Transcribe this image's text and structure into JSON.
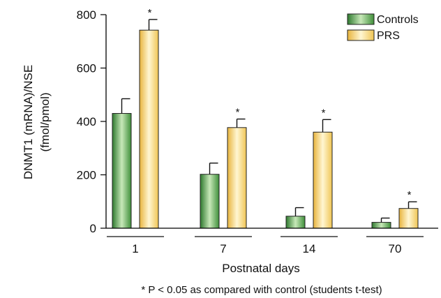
{
  "chart_data": {
    "type": "bar",
    "categories": [
      "1",
      "7",
      "14",
      "70"
    ],
    "series": [
      {
        "name": "Controls",
        "values": [
          430,
          202,
          45,
          22
        ],
        "errors": [
          55,
          42,
          32,
          16
        ],
        "significant": [
          false,
          false,
          false,
          false
        ],
        "color": "#4f9e45",
        "gradient_id": "grad-controls"
      },
      {
        "name": "PRS",
        "values": [
          742,
          377,
          360,
          74
        ],
        "errors": [
          40,
          32,
          47,
          25
        ],
        "significant": [
          true,
          true,
          true,
          true
        ],
        "color": "#f5d36a",
        "gradient_id": "grad-prs"
      }
    ],
    "ylim": [
      0,
      800
    ],
    "yticks": [
      0,
      200,
      400,
      600,
      800
    ],
    "ylabel_line1": "DNMT1 (mRNA)/NSE",
    "ylabel_line2": "(fmol/pmol)",
    "xlabel": "Postnatal days",
    "significance_marker": "*",
    "legend_position": "top-right",
    "grid": false,
    "footnote": "* P < 0.05 as compared with control (students t-test)"
  }
}
